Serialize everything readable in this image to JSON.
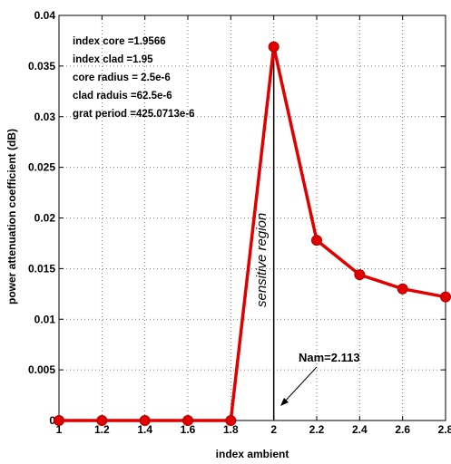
{
  "chart_data": {
    "type": "line",
    "x": [
      1,
      1.2,
      1.4,
      1.6,
      1.8,
      2.0,
      2.2,
      2.4,
      2.6,
      2.8
    ],
    "series": [
      {
        "values": [
          0,
          0,
          0,
          0,
          0,
          0.0369,
          0.0178,
          0.0144,
          0.013,
          0.0122
        ]
      }
    ],
    "xlabel": "index ambient",
    "ylabel": "power attenuation coefficient (dB)",
    "xlim": [
      1,
      2.8
    ],
    "ylim": [
      0,
      0.04
    ],
    "xticks": [
      "1",
      "1.2",
      "1.4",
      "1.6",
      "1.8",
      "2",
      "2.2",
      "2.4",
      "2.6",
      "2.8"
    ],
    "yticks": [
      "0",
      "0.005",
      "0.01",
      "0.015",
      "0.02",
      "0.025",
      "0.03",
      "0.035",
      "0.04"
    ],
    "grid": true,
    "line_color": "#e00000",
    "annotations": {
      "params": [
        "index core =1.9566",
        "index clad =1.95",
        "core radius = 2.5e-6",
        "clad raduis =62.5e-6",
        "grat period =425.0713e-6"
      ],
      "region_label": "sensitive region",
      "nam_label": "Nam=2.113",
      "vertical_line_x": 2.0
    }
  }
}
